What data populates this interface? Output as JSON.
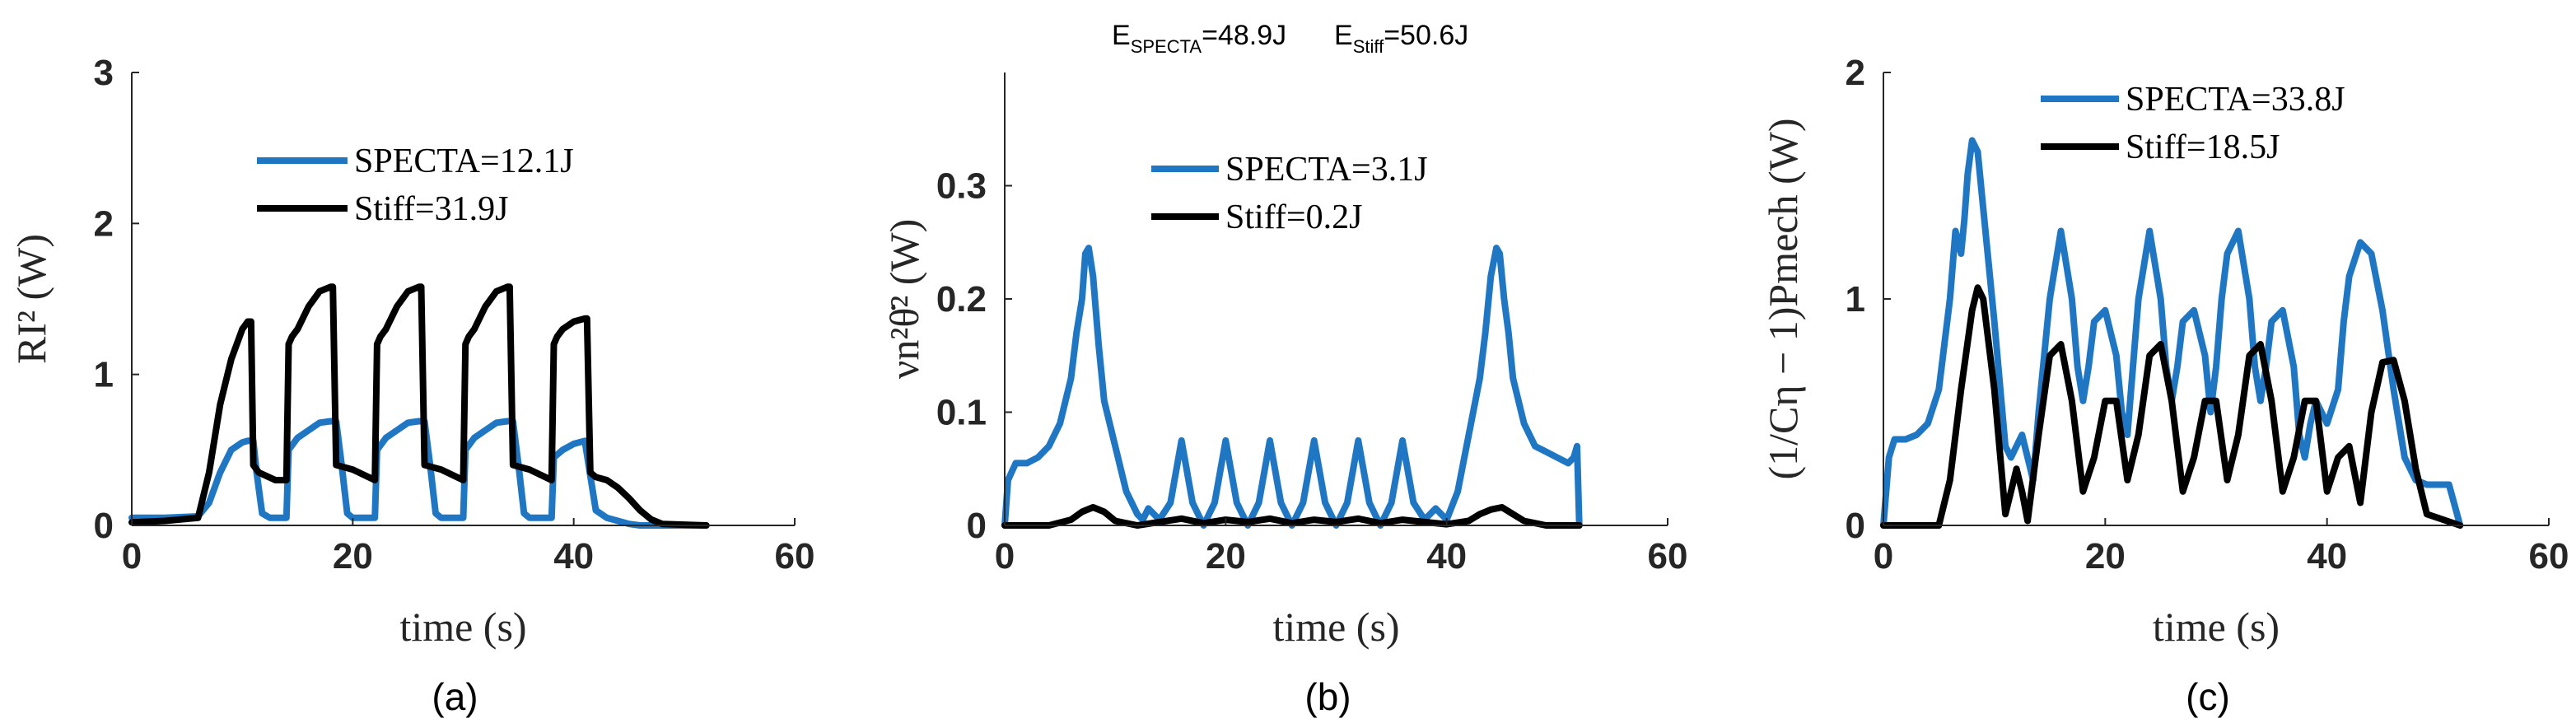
{
  "colors": {
    "specta": "#1f77c4",
    "stiff": "#000000",
    "axis": "#262626"
  },
  "top_label": {
    "e_specta_main": "E",
    "e_specta_sub": "SPECTA",
    "e_specta_val": "=48.9J",
    "e_stiff_main": "E",
    "e_stiff_sub": "Stiff",
    "e_stiff_val": "=50.6J"
  },
  "chart_data": [
    {
      "type": "line",
      "panel_label": "(a)",
      "xlabel": "time (s)",
      "ylabel": "RI² (W)",
      "xlim": [
        0,
        60
      ],
      "ylim": [
        0,
        3
      ],
      "xticks": [
        "0",
        "20",
        "40",
        "60"
      ],
      "yticks": [
        "0",
        "1",
        "2",
        "3"
      ],
      "legend": [
        "SPECTA=12.1J",
        "Stiff=31.9J"
      ],
      "series": [
        {
          "name": "SPECTA=12.1J",
          "x": [
            0,
            3,
            6,
            7,
            8,
            9,
            10,
            10.5,
            11,
            11.3,
            11.8,
            12.5,
            13.5,
            14,
            14.2,
            15,
            16,
            17,
            18,
            18.5,
            19,
            19.5,
            20,
            21,
            22,
            22.2,
            23,
            24,
            25,
            26,
            26.5,
            27,
            27.5,
            28,
            29,
            30,
            30.2,
            31,
            32,
            33,
            34,
            34.5,
            35,
            35.5,
            36,
            37,
            38,
            38.2,
            39,
            40,
            41,
            42,
            43,
            44,
            45,
            46,
            47,
            52
          ],
          "y": [
            0.05,
            0.05,
            0.06,
            0.15,
            0.35,
            0.5,
            0.55,
            0.56,
            0.56,
            0.35,
            0.08,
            0.05,
            0.05,
            0.05,
            0.5,
            0.58,
            0.63,
            0.68,
            0.69,
            0.69,
            0.4,
            0.08,
            0.05,
            0.05,
            0.05,
            0.5,
            0.58,
            0.63,
            0.68,
            0.69,
            0.69,
            0.4,
            0.08,
            0.05,
            0.05,
            0.05,
            0.5,
            0.58,
            0.63,
            0.68,
            0.69,
            0.69,
            0.4,
            0.08,
            0.05,
            0.05,
            0.05,
            0.45,
            0.5,
            0.54,
            0.56,
            0.1,
            0.05,
            0.03,
            0.01,
            0,
            0,
            0
          ]
        },
        {
          "name": "Stiff=31.9J",
          "x": [
            0,
            3,
            6,
            7,
            8,
            9,
            10,
            10.5,
            10.8,
            11,
            11.5,
            13,
            14,
            14.2,
            14.5,
            15,
            16,
            17,
            18,
            18.2,
            18.5,
            20,
            22,
            22.2,
            22.5,
            23,
            24,
            25,
            26,
            26.2,
            26.5,
            28,
            30,
            30.2,
            30.5,
            31,
            32,
            33,
            34,
            34.2,
            34.5,
            36,
            38,
            38.2,
            38.5,
            39,
            40,
            41,
            41.2,
            41.5,
            42,
            43,
            44,
            45,
            46,
            47,
            48,
            52
          ],
          "y": [
            0.02,
            0.03,
            0.05,
            0.35,
            0.8,
            1.1,
            1.3,
            1.35,
            1.35,
            0.4,
            0.35,
            0.3,
            0.3,
            1.2,
            1.25,
            1.3,
            1.45,
            1.55,
            1.58,
            1.58,
            0.4,
            0.37,
            0.3,
            1.2,
            1.25,
            1.3,
            1.45,
            1.55,
            1.58,
            1.58,
            0.4,
            0.37,
            0.3,
            1.2,
            1.25,
            1.3,
            1.45,
            1.55,
            1.58,
            1.58,
            0.4,
            0.37,
            0.3,
            1.2,
            1.25,
            1.3,
            1.35,
            1.37,
            1.37,
            0.35,
            0.32,
            0.3,
            0.25,
            0.18,
            0.1,
            0.04,
            0.01,
            0
          ]
        }
      ]
    },
    {
      "type": "line",
      "panel_label": "(b)",
      "xlabel": "time (s)",
      "ylabel": "νn²θ̇² (W)",
      "xlim": [
        0,
        60
      ],
      "ylim": [
        0,
        0.4
      ],
      "xticks": [
        "0",
        "20",
        "40",
        "60"
      ],
      "yticks": [
        "0",
        "0.1",
        "0.2",
        "0.3"
      ],
      "legend": [
        "SPECTA=3.1J",
        "Stiff=0.2J"
      ],
      "series": [
        {
          "name": "SPECTA=3.1J",
          "x": [
            0,
            0.3,
            1,
            2,
            3,
            4,
            5,
            6,
            6.5,
            7,
            7.3,
            7.6,
            8,
            8.5,
            9,
            10,
            11,
            12,
            12.5,
            13,
            14,
            15,
            16,
            17,
            18,
            19,
            20,
            21,
            22,
            23,
            24,
            25,
            26,
            27,
            28,
            29,
            30,
            31,
            32,
            33,
            34,
            35,
            36,
            37,
            38,
            39,
            40,
            41,
            42,
            43,
            43.5,
            44,
            44.5,
            44.8,
            45.2,
            45.6,
            46,
            47,
            48,
            49,
            50,
            51,
            51.5,
            51.8,
            52
          ],
          "y": [
            0,
            0.04,
            0.055,
            0.055,
            0.06,
            0.07,
            0.09,
            0.13,
            0.17,
            0.2,
            0.24,
            0.245,
            0.22,
            0.16,
            0.11,
            0.07,
            0.03,
            0.01,
            0.005,
            0.015,
            0.005,
            0.02,
            0.075,
            0.02,
            0.0,
            0.02,
            0.075,
            0.02,
            0,
            0.02,
            0.075,
            0.02,
            0,
            0.02,
            0.075,
            0.02,
            0,
            0.02,
            0.075,
            0.02,
            0,
            0.02,
            0.075,
            0.02,
            0.005,
            0.015,
            0.005,
            0.03,
            0.08,
            0.13,
            0.17,
            0.22,
            0.245,
            0.24,
            0.2,
            0.17,
            0.13,
            0.09,
            0.07,
            0.065,
            0.06,
            0.055,
            0.06,
            0.07,
            0
          ]
        },
        {
          "name": "Stiff=0.2J",
          "x": [
            0,
            4,
            6,
            7,
            8,
            9,
            10,
            12,
            14,
            16,
            18,
            20,
            22,
            24,
            26,
            28,
            30,
            32,
            34,
            36,
            38,
            40,
            42,
            43,
            44,
            45,
            46,
            47,
            49,
            52
          ],
          "y": [
            0,
            0,
            0.005,
            0.012,
            0.016,
            0.012,
            0.004,
            0,
            0.003,
            0.006,
            0.002,
            0.005,
            0.003,
            0.006,
            0.002,
            0.005,
            0.003,
            0.006,
            0.002,
            0.005,
            0.003,
            0.001,
            0.004,
            0.01,
            0.014,
            0.016,
            0.01,
            0.004,
            0,
            0
          ]
        }
      ]
    },
    {
      "type": "line",
      "panel_label": "(c)",
      "xlabel": "time (s)",
      "ylabel": "(1/Cη − 1)Pmech (W)",
      "xlim": [
        0,
        60
      ],
      "ylim": [
        0,
        2
      ],
      "xticks": [
        "0",
        "20",
        "40",
        "60"
      ],
      "yticks": [
        "0",
        "1",
        "2"
      ],
      "legend": [
        "SPECTA=33.8J",
        "Stiff=18.5J"
      ],
      "series": [
        {
          "name": "SPECTA=33.8J",
          "x": [
            0,
            0.5,
            1,
            2,
            3,
            4,
            5,
            6,
            6.5,
            7,
            7.3,
            7.6,
            8,
            8.5,
            9,
            10,
            11,
            11.5,
            12,
            12.5,
            13,
            13.5,
            14,
            15,
            16,
            17,
            17.5,
            18,
            18.5,
            19,
            20,
            21,
            21.5,
            22,
            22.5,
            23,
            24,
            25,
            25.5,
            26,
            26.5,
            27,
            28,
            29,
            29.5,
            30,
            30.5,
            31,
            32,
            33,
            33.5,
            34,
            34.5,
            35,
            36,
            37,
            37.5,
            38,
            38.5,
            39,
            40,
            41,
            41.5,
            42,
            43,
            44,
            45,
            46,
            47,
            48,
            49,
            50,
            51,
            52
          ],
          "y": [
            0,
            0.3,
            0.38,
            0.38,
            0.4,
            0.45,
            0.6,
            1.0,
            1.3,
            1.2,
            1.35,
            1.55,
            1.7,
            1.65,
            1.4,
            0.9,
            0.35,
            0.3,
            0.35,
            0.4,
            0.3,
            0.2,
            0.5,
            1.0,
            1.3,
            1.0,
            0.7,
            0.55,
            0.7,
            0.9,
            0.95,
            0.75,
            0.5,
            0.4,
            0.7,
            1.0,
            1.3,
            1.0,
            0.7,
            0.55,
            0.7,
            0.9,
            0.95,
            0.75,
            0.5,
            0.7,
            1.0,
            1.2,
            1.3,
            1.0,
            0.7,
            0.55,
            0.7,
            0.9,
            0.95,
            0.7,
            0.4,
            0.3,
            0.45,
            0.55,
            0.45,
            0.6,
            0.9,
            1.1,
            1.25,
            1.2,
            0.95,
            0.6,
            0.3,
            0.2,
            0.18,
            0.18,
            0.18,
            0
          ]
        },
        {
          "name": "Stiff=18.5J",
          "x": [
            0,
            5,
            6,
            7,
            8,
            8.5,
            9,
            10,
            11,
            11.5,
            12,
            12.5,
            13,
            14,
            15,
            16,
            17,
            18,
            19,
            20,
            21,
            22,
            23,
            24,
            25,
            26,
            27,
            28,
            29,
            30,
            31,
            32,
            33,
            34,
            35,
            36,
            37,
            38,
            39,
            40,
            41,
            42,
            43,
            44,
            45,
            46,
            47,
            48,
            49,
            52
          ],
          "y": [
            0,
            0,
            0.2,
            0.6,
            0.95,
            1.05,
            1.0,
            0.6,
            0.05,
            0.15,
            0.25,
            0.15,
            0.02,
            0.4,
            0.75,
            0.8,
            0.55,
            0.15,
            0.3,
            0.55,
            0.55,
            0.2,
            0.4,
            0.75,
            0.8,
            0.55,
            0.15,
            0.3,
            0.55,
            0.55,
            0.2,
            0.4,
            0.75,
            0.8,
            0.55,
            0.15,
            0.3,
            0.55,
            0.55,
            0.15,
            0.3,
            0.35,
            0.1,
            0.5,
            0.72,
            0.73,
            0.55,
            0.25,
            0.05,
            0
          ]
        }
      ]
    }
  ]
}
